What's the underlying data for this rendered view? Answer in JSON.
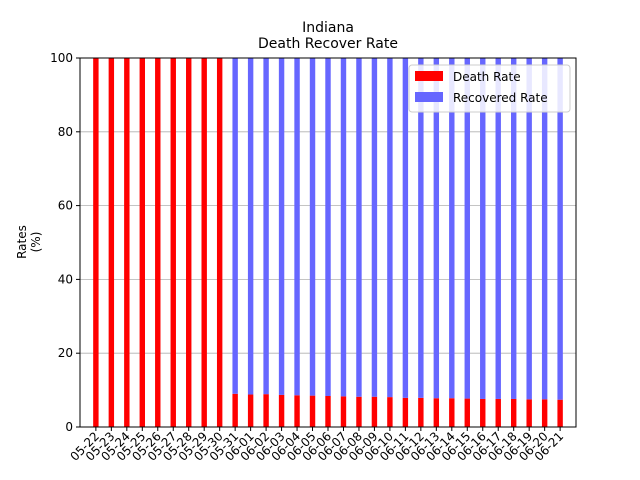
{
  "chart_data": {
    "type": "bar",
    "stacked": true,
    "title": "Indiana",
    "subtitle": "Death Recover Rate",
    "xlabel": "",
    "ylabel": "Rates\n(%)",
    "ylim": [
      0,
      100
    ],
    "yticks": [
      0,
      20,
      40,
      60,
      80,
      100
    ],
    "grid": "horizontal",
    "legend_position": "top-right",
    "categories": [
      "05-22",
      "05-23",
      "05-24",
      "05-25",
      "05-26",
      "05-27",
      "05-28",
      "05-29",
      "05-30",
      "05-31",
      "06-01",
      "06-02",
      "06-03",
      "06-04",
      "06-05",
      "06-06",
      "06-07",
      "06-08",
      "06-09",
      "06-10",
      "06-11",
      "06-12",
      "06-13",
      "06-14",
      "06-15",
      "06-16",
      "06-17",
      "06-18",
      "06-19",
      "06-20",
      "06-21"
    ],
    "series": [
      {
        "name": "Death Rate",
        "color": "#ff0000",
        "values": [
          100,
          100,
          100,
          100,
          100,
          100,
          100,
          100,
          100,
          9.0,
          8.8,
          8.9,
          8.7,
          8.6,
          8.5,
          8.4,
          8.3,
          8.2,
          8.2,
          8.1,
          7.9,
          7.9,
          7.8,
          7.8,
          7.7,
          7.6,
          7.6,
          7.6,
          7.5,
          7.5,
          7.4
        ]
      },
      {
        "name": "Recovered Rate",
        "color": "#6666ff",
        "values": [
          0,
          0,
          0,
          0,
          0,
          0,
          0,
          0,
          0,
          91.0,
          91.2,
          91.1,
          91.3,
          91.4,
          91.5,
          91.6,
          91.7,
          91.8,
          91.8,
          91.9,
          92.1,
          92.1,
          92.2,
          92.2,
          92.3,
          92.4,
          92.4,
          92.4,
          92.5,
          92.5,
          92.6
        ]
      }
    ]
  }
}
